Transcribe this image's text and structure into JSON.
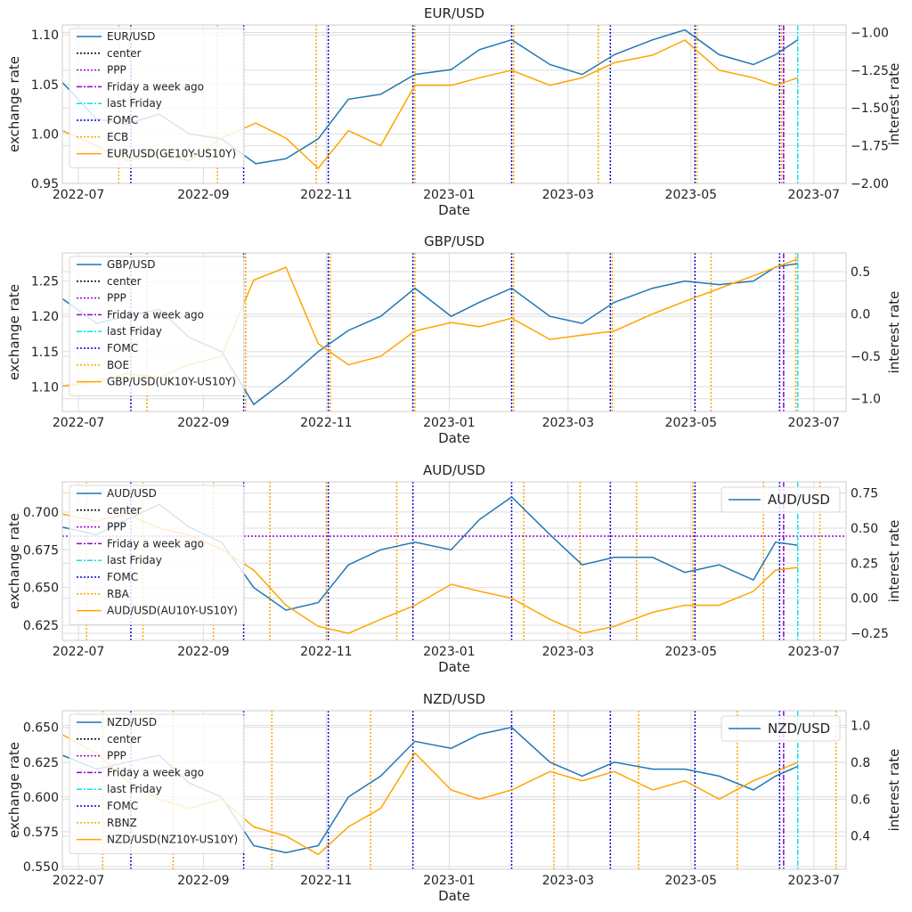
{
  "figure": {
    "xlabel": "Date",
    "x_ticks": [
      "2022-07",
      "2022-09",
      "2022-11",
      "2023-01",
      "2023-03",
      "2023-05",
      "2023-07"
    ],
    "xlim": [
      "2022-06-23",
      "2023-07-17"
    ],
    "left_axis_label": "exchange rate",
    "right_axis_label": "interest rate",
    "colors": {
      "rate": "#1f77b4",
      "diff": "#ffa500",
      "center": "#000000",
      "ppp": "#9400d3",
      "week_ago": "#9400d3",
      "last_friday": "#00e5ee",
      "fomc": "#0000cd",
      "cb": "#ffa500",
      "grid": "#dddddd"
    }
  },
  "chart_data": [
    {
      "type": "line",
      "title": "EUR/USD",
      "legend": [
        "EUR/USD",
        "center",
        "PPP",
        "Friday a week ago",
        "last Friday",
        "FOMC",
        "ECB",
        "EUR/USD(GE10Y-US10Y)"
      ],
      "ylim_left": [
        0.95,
        1.11
      ],
      "yticks_left": [
        "0.95",
        "1.00",
        "1.05",
        "1.10"
      ],
      "ylim_right": [
        -2.0,
        -0.95
      ],
      "yticks_right": [
        "−2.00",
        "−1.75",
        "−1.50",
        "−1.25",
        "−1.00"
      ],
      "ppp": null,
      "fomc_dates": [
        "2022-07-27",
        "2022-09-21",
        "2022-11-02",
        "2022-12-14",
        "2023-02-01",
        "2023-03-22",
        "2023-05-03",
        "2023-06-14"
      ],
      "cb_dates": [
        "2022-07-21",
        "2022-09-08",
        "2022-10-27",
        "2022-12-15",
        "2023-02-02",
        "2023-03-16",
        "2023-05-04",
        "2023-06-15"
      ],
      "week_ago": "2023-06-16",
      "last_friday": "2023-06-23",
      "rate_series": {
        "name": "EUR/USD",
        "x": [
          "2022-06-23",
          "2022-07-10",
          "2022-07-25",
          "2022-08-10",
          "2022-08-25",
          "2022-09-10",
          "2022-09-27",
          "2022-10-12",
          "2022-10-28",
          "2022-11-12",
          "2022-11-28",
          "2022-12-15",
          "2023-01-02",
          "2023-01-16",
          "2023-02-01",
          "2023-02-20",
          "2023-03-08",
          "2023-03-24",
          "2023-04-12",
          "2023-04-28",
          "2023-05-15",
          "2023-06-01",
          "2023-06-12",
          "2023-06-23"
        ],
        "values": [
          1.052,
          1.015,
          1.01,
          1.02,
          1.0,
          0.995,
          0.97,
          0.975,
          0.995,
          1.035,
          1.04,
          1.06,
          1.065,
          1.085,
          1.095,
          1.07,
          1.06,
          1.08,
          1.095,
          1.105,
          1.08,
          1.07,
          1.08,
          1.095
        ]
      },
      "diff_series": {
        "name": "EUR/USD(GE10Y-US10Y)",
        "x": [
          "2022-06-23",
          "2022-07-10",
          "2022-07-25",
          "2022-08-10",
          "2022-08-25",
          "2022-09-10",
          "2022-09-27",
          "2022-10-12",
          "2022-10-28",
          "2022-11-12",
          "2022-11-28",
          "2022-12-15",
          "2023-01-02",
          "2023-01-16",
          "2023-02-01",
          "2023-02-20",
          "2023-03-08",
          "2023-03-24",
          "2023-04-12",
          "2023-04-28",
          "2023-05-15",
          "2023-06-01",
          "2023-06-12",
          "2023-06-23"
        ],
        "values": [
          -1.65,
          -1.75,
          -1.85,
          -1.8,
          -1.85,
          -1.7,
          -1.6,
          -1.7,
          -1.9,
          -1.65,
          -1.75,
          -1.35,
          -1.35,
          -1.3,
          -1.25,
          -1.35,
          -1.3,
          -1.2,
          -1.15,
          -1.05,
          -1.25,
          -1.3,
          -1.35,
          -1.3
        ]
      }
    },
    {
      "type": "line",
      "title": "GBP/USD",
      "legend": [
        "GBP/USD",
        "center",
        "PPP",
        "Friday a week ago",
        "last Friday",
        "FOMC",
        "BOE",
        "GBP/USD(UK10Y-US10Y)"
      ],
      "ylim_left": [
        1.065,
        1.29
      ],
      "yticks_left": [
        "1.10",
        "1.15",
        "1.20",
        "1.25"
      ],
      "ylim_right": [
        -1.15,
        0.72
      ],
      "yticks_right": [
        "−1.0",
        "−0.5",
        "0.0",
        "0.5"
      ],
      "ppp": null,
      "fomc_dates": [
        "2022-07-27",
        "2022-09-21",
        "2022-11-02",
        "2022-12-14",
        "2023-02-01",
        "2023-03-22",
        "2023-05-03",
        "2023-06-14"
      ],
      "cb_dates": [
        "2022-08-04",
        "2022-09-22",
        "2022-11-03",
        "2022-12-15",
        "2023-02-02",
        "2023-03-23",
        "2023-05-11",
        "2023-06-22"
      ],
      "week_ago": "2023-06-16",
      "last_friday": "2023-06-23",
      "rate_series": {
        "name": "GBP/USD",
        "x": [
          "2022-06-23",
          "2022-07-10",
          "2022-07-25",
          "2022-08-10",
          "2022-08-25",
          "2022-09-10",
          "2022-09-26",
          "2022-10-12",
          "2022-10-28",
          "2022-11-12",
          "2022-11-28",
          "2022-12-15",
          "2023-01-02",
          "2023-01-16",
          "2023-02-01",
          "2023-02-20",
          "2023-03-08",
          "2023-03-24",
          "2023-04-12",
          "2023-04-28",
          "2023-05-15",
          "2023-06-01",
          "2023-06-12",
          "2023-06-23"
        ],
        "values": [
          1.225,
          1.19,
          1.2,
          1.21,
          1.17,
          1.15,
          1.075,
          1.11,
          1.15,
          1.18,
          1.2,
          1.24,
          1.2,
          1.22,
          1.24,
          1.2,
          1.19,
          1.22,
          1.24,
          1.25,
          1.245,
          1.25,
          1.27,
          1.275
        ]
      },
      "diff_series": {
        "name": "GBP/USD(UK10Y-US10Y)",
        "x": [
          "2022-06-23",
          "2022-07-10",
          "2022-07-25",
          "2022-08-10",
          "2022-08-25",
          "2022-09-10",
          "2022-09-26",
          "2022-10-12",
          "2022-10-28",
          "2022-11-12",
          "2022-11-28",
          "2022-12-15",
          "2023-01-02",
          "2023-01-16",
          "2023-02-01",
          "2023-02-20",
          "2023-03-08",
          "2023-03-24",
          "2023-04-12",
          "2023-04-28",
          "2023-05-15",
          "2023-06-01",
          "2023-06-12",
          "2023-06-23"
        ],
        "values": [
          -0.85,
          -0.8,
          -0.7,
          -0.75,
          -0.6,
          -0.5,
          0.4,
          0.55,
          -0.35,
          -0.6,
          -0.5,
          -0.2,
          -0.1,
          -0.15,
          -0.05,
          -0.3,
          -0.25,
          -0.2,
          0.0,
          0.15,
          0.3,
          0.45,
          0.55,
          0.65
        ]
      }
    },
    {
      "type": "line",
      "title": "AUD/USD",
      "legend": [
        "AUD/USD",
        "center",
        "PPP",
        "Friday a week ago",
        "last Friday",
        "FOMC",
        "RBA",
        "AUD/USD(AU10Y-US10Y)"
      ],
      "extra_legend": [
        "AUD/USD"
      ],
      "ylim_left": [
        0.615,
        0.72
      ],
      "yticks_left": [
        "0.625",
        "0.650",
        "0.675",
        "0.700"
      ],
      "ylim_right": [
        -0.3,
        0.83
      ],
      "yticks_right": [
        "−0.25",
        "0.00",
        "0.25",
        "0.50",
        "0.75"
      ],
      "ppp": 0.684,
      "fomc_dates": [
        "2022-07-27",
        "2022-09-21",
        "2022-11-02",
        "2022-12-14",
        "2023-02-01",
        "2023-03-22",
        "2023-05-03",
        "2023-06-14"
      ],
      "cb_dates": [
        "2022-07-05",
        "2022-08-02",
        "2022-09-06",
        "2022-10-04",
        "2022-11-01",
        "2022-12-06",
        "2023-02-07",
        "2023-03-07",
        "2023-04-04",
        "2023-05-02",
        "2023-06-06",
        "2023-07-04"
      ],
      "week_ago": "2023-06-16",
      "last_friday": "2023-06-23",
      "rate_series": {
        "name": "AUD/USD",
        "x": [
          "2022-06-23",
          "2022-07-10",
          "2022-07-25",
          "2022-08-10",
          "2022-08-25",
          "2022-09-10",
          "2022-09-26",
          "2022-10-12",
          "2022-10-28",
          "2022-11-12",
          "2022-11-28",
          "2022-12-15",
          "2023-01-02",
          "2023-01-16",
          "2023-02-01",
          "2023-02-20",
          "2023-03-08",
          "2023-03-24",
          "2023-04-12",
          "2023-04-28",
          "2023-05-15",
          "2023-06-01",
          "2023-06-12",
          "2023-06-23"
        ],
        "values": [
          0.69,
          0.685,
          0.695,
          0.705,
          0.69,
          0.68,
          0.65,
          0.635,
          0.64,
          0.665,
          0.675,
          0.68,
          0.675,
          0.695,
          0.71,
          0.685,
          0.665,
          0.67,
          0.67,
          0.66,
          0.665,
          0.655,
          0.68,
          0.678
        ]
      },
      "diff_series": {
        "name": "AUD/USD(AU10Y-US10Y)",
        "x": [
          "2022-06-23",
          "2022-07-10",
          "2022-07-25",
          "2022-08-10",
          "2022-08-25",
          "2022-09-10",
          "2022-09-26",
          "2022-10-12",
          "2022-10-28",
          "2022-11-12",
          "2022-11-28",
          "2022-12-15",
          "2023-01-02",
          "2023-01-16",
          "2023-02-01",
          "2023-02-20",
          "2023-03-08",
          "2023-03-24",
          "2023-04-12",
          "2023-04-28",
          "2023-05-15",
          "2023-06-01",
          "2023-06-12",
          "2023-06-23"
        ],
        "values": [
          0.6,
          0.55,
          0.6,
          0.5,
          0.45,
          0.35,
          0.2,
          -0.05,
          -0.2,
          -0.25,
          -0.15,
          -0.05,
          0.1,
          0.05,
          0.0,
          -0.15,
          -0.25,
          -0.2,
          -0.1,
          -0.05,
          -0.05,
          0.05,
          0.2,
          0.22
        ]
      }
    },
    {
      "type": "line",
      "title": "NZD/USD",
      "legend": [
        "NZD/USD",
        "center",
        "PPP",
        "Friday a week ago",
        "last Friday",
        "FOMC",
        "RBNZ",
        "NZD/USD(NZ10Y-US10Y)"
      ],
      "extra_legend": [
        "NZD/USD"
      ],
      "ylim_left": [
        0.548,
        0.662
      ],
      "yticks_left": [
        "0.550",
        "0.575",
        "0.600",
        "0.625",
        "0.650"
      ],
      "ylim_right": [
        0.22,
        1.08
      ],
      "yticks_right": [
        "0.4",
        "0.6",
        "0.8",
        "1.0"
      ],
      "ppp": null,
      "fomc_dates": [
        "2022-07-27",
        "2022-09-21",
        "2022-11-02",
        "2022-12-14",
        "2023-02-01",
        "2023-03-22",
        "2023-05-03",
        "2023-06-14"
      ],
      "cb_dates": [
        "2022-07-13",
        "2022-08-17",
        "2022-10-05",
        "2022-11-23",
        "2023-02-22",
        "2023-04-05",
        "2023-05-24",
        "2023-07-12"
      ],
      "week_ago": "2023-06-16",
      "last_friday": "2023-06-23",
      "rate_series": {
        "name": "NZD/USD",
        "x": [
          "2022-06-23",
          "2022-07-10",
          "2022-07-25",
          "2022-08-10",
          "2022-08-25",
          "2022-09-10",
          "2022-09-26",
          "2022-10-12",
          "2022-10-28",
          "2022-11-12",
          "2022-11-28",
          "2022-12-15",
          "2023-01-02",
          "2023-01-16",
          "2023-02-01",
          "2023-02-20",
          "2023-03-08",
          "2023-03-24",
          "2023-04-12",
          "2023-04-28",
          "2023-05-15",
          "2023-06-01",
          "2023-06-12",
          "2023-06-23"
        ],
        "values": [
          0.63,
          0.62,
          0.625,
          0.63,
          0.61,
          0.6,
          0.565,
          0.56,
          0.565,
          0.6,
          0.615,
          0.64,
          0.635,
          0.645,
          0.65,
          0.625,
          0.615,
          0.625,
          0.62,
          0.62,
          0.615,
          0.605,
          0.615,
          0.622
        ]
      },
      "diff_series": {
        "name": "NZD/USD(NZ10Y-US10Y)",
        "x": [
          "2022-06-23",
          "2022-07-10",
          "2022-07-25",
          "2022-08-10",
          "2022-08-25",
          "2022-09-10",
          "2022-09-26",
          "2022-10-12",
          "2022-10-28",
          "2022-11-12",
          "2022-11-28",
          "2022-12-15",
          "2023-01-02",
          "2023-01-16",
          "2023-02-01",
          "2023-02-20",
          "2023-03-08",
          "2023-03-24",
          "2023-04-12",
          "2023-04-28",
          "2023-05-15",
          "2023-06-01",
          "2023-06-12",
          "2023-06-23"
        ],
        "values": [
          0.95,
          0.85,
          0.7,
          0.6,
          0.55,
          0.6,
          0.45,
          0.4,
          0.3,
          0.45,
          0.55,
          0.85,
          0.65,
          0.6,
          0.65,
          0.75,
          0.7,
          0.75,
          0.65,
          0.7,
          0.6,
          0.7,
          0.75,
          0.8
        ]
      }
    }
  ]
}
